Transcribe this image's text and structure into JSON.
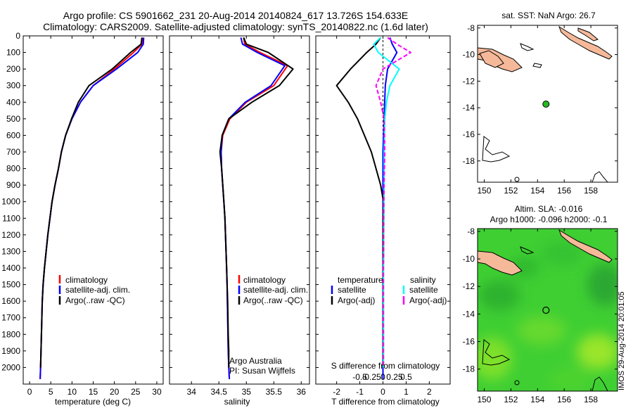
{
  "header": {
    "title_line1": "Argo profile: CS 5901662_231 20-Aug-2014 20140824_617 13.726S 154.633E",
    "title_line2": "Climatology: CARS2009. Satellite-adjusted climatology: synTS_20140822.nc (1.6d later)"
  },
  "colors": {
    "climatology": "#ff0000",
    "satellite": "#0000ff",
    "argo": "#000000",
    "sat_s": "#00ffff",
    "argo_s": "#ff00ff",
    "land": "#f5b99a",
    "sla_field": "#33cc33",
    "float_marker": "#22bb22"
  },
  "depth_axis": {
    "ticks": [
      0,
      100,
      200,
      300,
      400,
      500,
      600,
      700,
      800,
      900,
      1000,
      1100,
      1200,
      1300,
      1400,
      1500,
      1600,
      1700,
      1800,
      1900,
      2000
    ],
    "range": [
      0,
      2100
    ]
  },
  "chart_data": [
    {
      "id": "temperature",
      "type": "line",
      "xlabel": "temperature (deg C)",
      "xlim": [
        -1.5,
        31.5
      ],
      "xticks": [
        0,
        5,
        10,
        15,
        20,
        25,
        30
      ],
      "ylim": [
        0,
        2100
      ],
      "y_inverted": true,
      "legend": {
        "position": "lower-middle",
        "entries": [
          "climatology",
          "satellite-adj. clim.",
          "Argo(..raw -QC)"
        ]
      },
      "series": [
        {
          "name": "climatology",
          "color": "#ff0000",
          "x": [
            26.7,
            26.5,
            24.5,
            20,
            15,
            12,
            10,
            8.5,
            7.5,
            6.8,
            6,
            5.3,
            4.8,
            4.3,
            3.9,
            3.5,
            3.2,
            3,
            2.9,
            2.8,
            2.7,
            2.6,
            2.5
          ],
          "y": [
            10,
            50,
            100,
            200,
            300,
            400,
            500,
            600,
            700,
            800,
            900,
            1000,
            1100,
            1200,
            1300,
            1400,
            1500,
            1600,
            1700,
            1800,
            1900,
            2000,
            2070
          ]
        },
        {
          "name": "satellite-adj. clim.",
          "color": "#0000ff",
          "x": [
            26.9,
            26.8,
            25.5,
            20.5,
            15,
            12,
            10,
            8.5,
            7.5,
            6.8,
            6,
            5.3,
            4.8,
            4.3,
            3.9,
            3.5,
            3.2,
            3,
            2.9,
            2.8,
            2.7,
            2.6,
            2.5
          ],
          "y": [
            10,
            50,
            100,
            200,
            300,
            400,
            500,
            600,
            700,
            800,
            900,
            1000,
            1100,
            1200,
            1300,
            1400,
            1500,
            1600,
            1700,
            1800,
            1900,
            2000,
            2070
          ]
        },
        {
          "name": "Argo(..raw -QC)",
          "color": "#000000",
          "x": [
            26.5,
            26.3,
            23.8,
            19.5,
            14,
            11.5,
            9.9,
            8.5,
            7.5,
            6.8,
            6,
            5.3,
            4.8,
            4.3,
            3.9,
            3.5,
            3.2,
            3,
            2.9,
            2.8,
            2.7,
            2.6
          ],
          "y": [
            10,
            50,
            100,
            200,
            300,
            400,
            500,
            600,
            700,
            800,
            900,
            1000,
            1100,
            1200,
            1300,
            1400,
            1500,
            1600,
            1700,
            1800,
            1900,
            2000
          ]
        }
      ]
    },
    {
      "id": "salinity",
      "type": "line",
      "xlabel": "salinity",
      "xlim": [
        33.6,
        36.15
      ],
      "xticks": [
        34,
        34.5,
        35,
        35.5,
        36
      ],
      "ylim": [
        0,
        2100
      ],
      "y_inverted": true,
      "legend": {
        "position": "lower-middle",
        "entries": [
          "climatology",
          "satellite-adj. clim.",
          "Argo(..raw -QC)"
        ]
      },
      "annotation": [
        "Argo Australia",
        "PI: Susan Wijffels"
      ],
      "series": [
        {
          "name": "climatology",
          "color": "#ff0000",
          "x": [
            34.95,
            34.97,
            35.25,
            35.75,
            35.5,
            35.0,
            34.7,
            34.57,
            34.54,
            34.55,
            34.57,
            34.59,
            34.61,
            34.62,
            34.63,
            34.64,
            34.65,
            34.655,
            34.66,
            34.665,
            34.67,
            34.68,
            34.69
          ],
          "y": [
            10,
            50,
            100,
            180,
            300,
            400,
            500,
            600,
            700,
            800,
            900,
            1000,
            1100,
            1200,
            1300,
            1400,
            1500,
            1600,
            1700,
            1800,
            1900,
            2000,
            2070
          ]
        },
        {
          "name": "satellite-adj. clim.",
          "color": "#0000ff",
          "x": [
            34.9,
            34.93,
            35.2,
            35.7,
            35.45,
            34.98,
            34.68,
            34.56,
            34.54,
            34.55,
            34.57,
            34.59,
            34.61,
            34.62,
            34.63,
            34.64,
            34.65,
            34.655,
            34.66,
            34.665,
            34.67,
            34.68,
            34.69
          ],
          "y": [
            10,
            50,
            100,
            180,
            300,
            400,
            500,
            600,
            700,
            800,
            900,
            1000,
            1100,
            1200,
            1300,
            1400,
            1500,
            1600,
            1700,
            1800,
            1900,
            2000,
            2070
          ]
        },
        {
          "name": "Argo(..raw -QC)",
          "color": "#000000",
          "x": [
            34.95,
            35.0,
            35.4,
            35.85,
            35.6,
            35.1,
            34.68,
            34.56,
            34.52,
            34.55,
            34.57,
            34.59,
            34.61,
            34.62,
            34.63,
            34.64,
            34.65,
            34.66,
            34.665,
            34.67,
            34.68,
            34.68
          ],
          "y": [
            10,
            50,
            100,
            200,
            300,
            400,
            500,
            600,
            700,
            800,
            900,
            1000,
            1100,
            1200,
            1300,
            1400,
            1500,
            1600,
            1700,
            1800,
            1900,
            2000
          ]
        }
      ]
    },
    {
      "id": "difference",
      "type": "line",
      "xlabel": "T difference from climatology",
      "xlabel_top": "S difference from climatology",
      "xlim": [
        -2.9,
        2.9
      ],
      "xticks": [
        -2,
        -1,
        0,
        1,
        2
      ],
      "xticks_top_labels": [
        "-0.5",
        "-0.25",
        "0",
        "0.25",
        "0.5"
      ],
      "xticks_top_values": [
        -1,
        -0.5,
        0,
        0.5,
        1
      ],
      "ylim": [
        0,
        2100
      ],
      "y_inverted": true,
      "legend": {
        "position": "lower-middle",
        "entries_t": [
          "temperature",
          "satellite",
          "Argo(-adj)"
        ],
        "entries_s": [
          "salinity",
          "satellite",
          "Argo(-adj)"
        ]
      },
      "series": [
        {
          "name": "T satellite",
          "color": "#0000ff",
          "x": [
            0.3,
            0.4,
            0.6,
            0.2,
            0.1,
            0.05,
            0,
            0,
            0,
            0,
            0,
            0,
            0,
            0,
            0,
            0,
            0,
            0,
            0
          ],
          "y": [
            10,
            50,
            100,
            200,
            300,
            500,
            700,
            900,
            1000,
            1100,
            1200,
            1300,
            1400,
            1500,
            1600,
            1700,
            1800,
            1900,
            2070
          ]
        },
        {
          "name": "T Argo(-adj)",
          "color": "#000000",
          "x": [
            -0.1,
            -0.3,
            -0.7,
            -1.4,
            -2.0,
            -1.5,
            -1.1,
            -0.5,
            -0.1,
            0.02,
            0,
            0,
            0,
            0,
            0,
            0,
            0,
            0,
            0
          ],
          "y": [
            10,
            50,
            100,
            200,
            300,
            400,
            500,
            700,
            900,
            1000,
            1100,
            1200,
            1300,
            1400,
            1500,
            1600,
            1700,
            1800,
            2000
          ]
        },
        {
          "name": "S satellite",
          "color": "#00ffff",
          "x": [
            -0.1,
            -0.4,
            -0.2,
            0.7,
            0.3,
            0.15,
            0.08,
            0.05,
            0.05,
            0.04,
            0.04,
            0.03,
            0.03,
            0.02,
            0.02,
            0.02,
            0.02,
            0.02
          ],
          "y": [
            10,
            50,
            100,
            200,
            300,
            400,
            500,
            700,
            900,
            1000,
            1100,
            1200,
            1300,
            1400,
            1500,
            1600,
            1700,
            2000
          ]
        },
        {
          "name": "S Argo(-adj)",
          "color": "#ff00ff",
          "x": [
            0.2,
            0.6,
            1.2,
            0,
            -0.3,
            -0.1,
            0.05,
            0.08,
            0.05,
            0.04,
            0.03,
            0.03,
            0.03,
            0.02,
            0.02,
            0.02,
            0.02,
            0.02
          ],
          "y": [
            10,
            50,
            100,
            200,
            300,
            400,
            500,
            700,
            900,
            1000,
            1100,
            1200,
            1300,
            1400,
            1500,
            1600,
            1700,
            2000
          ]
        }
      ]
    }
  ],
  "map_sst": {
    "title": "sat. SST: NaN Argo: 26.7",
    "xticks": [
      150,
      152,
      154,
      156,
      158
    ],
    "yticks": [
      -8,
      -10,
      -12,
      -14,
      -16,
      -18
    ],
    "xlim": [
      149.5,
      160
    ],
    "ylim": [
      -19.6,
      -7.8
    ],
    "float_position": {
      "lon": 154.633,
      "lat": -13.726
    }
  },
  "map_sla": {
    "title_line1": "Altim. SLA: -0.016",
    "title_line2": "Argo h1000: -0.096 h2000: -0.1",
    "xticks": [
      150,
      152,
      154,
      156,
      158
    ],
    "yticks": [
      -8,
      -10,
      -12,
      -14,
      -16,
      -18
    ],
    "xlim": [
      149.5,
      160
    ],
    "ylim": [
      -19.6,
      -7.8
    ],
    "float_position": {
      "lon": 154.633,
      "lat": -13.726
    }
  },
  "footer": {
    "stamp": "IMOS 29-Aug-2014 20:01:05"
  }
}
